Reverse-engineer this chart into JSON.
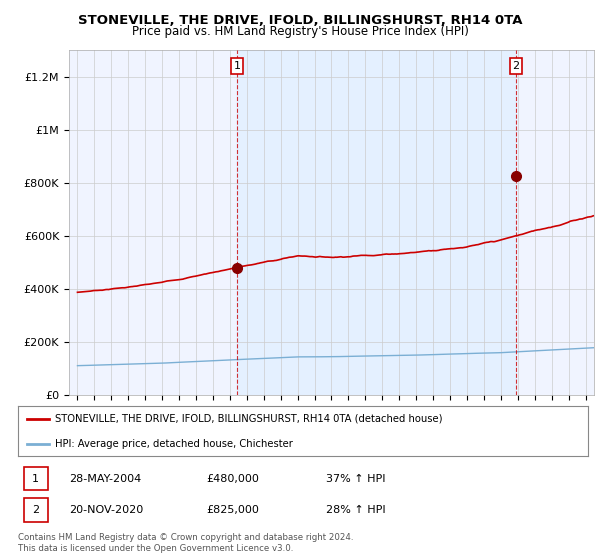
{
  "title": "STONEVILLE, THE DRIVE, IFOLD, BILLINGSHURST, RH14 0TA",
  "subtitle": "Price paid vs. HM Land Registry's House Price Index (HPI)",
  "ylabel_ticks": [
    "£0",
    "£200K",
    "£400K",
    "£600K",
    "£800K",
    "£1M",
    "£1.2M"
  ],
  "ytick_values": [
    0,
    200000,
    400000,
    600000,
    800000,
    1000000,
    1200000
  ],
  "ylim": [
    0,
    1300000
  ],
  "xlim_start": 1994.5,
  "xlim_end": 2025.5,
  "red_line_color": "#cc0000",
  "blue_line_color": "#7bafd4",
  "shade_color": "#ddeeff",
  "marker1_x": 2004.42,
  "marker1_y": 480000,
  "marker2_x": 2020.9,
  "marker2_y": 825000,
  "vline1_x": 2004.42,
  "vline2_x": 2020.9,
  "legend_red_label": "STONEVILLE, THE DRIVE, IFOLD, BILLINGSHURST, RH14 0TA (detached house)",
  "legend_blue_label": "HPI: Average price, detached house, Chichester",
  "table_row1": [
    "1",
    "28-MAY-2004",
    "£480,000",
    "37% ↑ HPI"
  ],
  "table_row2": [
    "2",
    "20-NOV-2020",
    "£825,000",
    "28% ↑ HPI"
  ],
  "footer": "Contains HM Land Registry data © Crown copyright and database right 2024.\nThis data is licensed under the Open Government Licence v3.0.",
  "background_color": "#f0f4ff",
  "plot_bg_color": "#f0f4ff"
}
